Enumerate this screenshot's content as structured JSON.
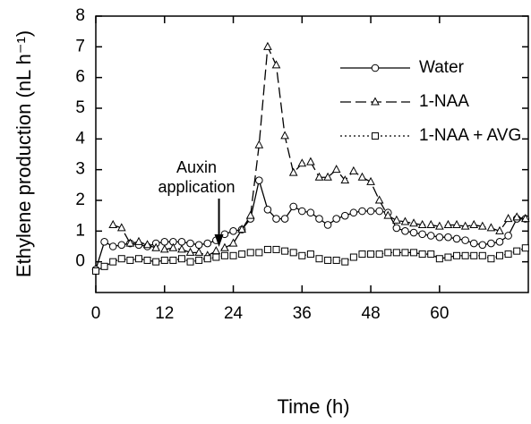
{
  "chart_data": {
    "type": "line",
    "xlabel": "Time (h)",
    "ylabel": "Ethylene production (nL h⁻¹)",
    "annotation": "Auxin application",
    "annotation_x": 21.5,
    "x": [
      0,
      1.5,
      3,
      4.5,
      6,
      7.5,
      9,
      10.5,
      12,
      13.5,
      15,
      16.5,
      18,
      19.5,
      21,
      22.5,
      24,
      25.5,
      27,
      28.5,
      30,
      31.5,
      33,
      34.5,
      36,
      37.5,
      39,
      40.5,
      42,
      43.5,
      45,
      46.5,
      48,
      49.5,
      51,
      52.5,
      54,
      55.5,
      57,
      58.5,
      60,
      61.5,
      63,
      64.5,
      66,
      67.5,
      69,
      70.5,
      72,
      73.5,
      75
    ],
    "series": [
      {
        "name": "Water",
        "color": "#000000",
        "marker": "circle",
        "dash": "solid",
        "values": [
          -0.25,
          0.65,
          0.5,
          0.55,
          0.6,
          0.55,
          0.5,
          0.6,
          0.65,
          0.65,
          0.65,
          0.6,
          0.55,
          0.6,
          0.7,
          0.9,
          1.0,
          1.05,
          1.4,
          2.65,
          1.7,
          1.4,
          1.4,
          1.8,
          1.65,
          1.6,
          1.4,
          1.2,
          1.4,
          1.5,
          1.6,
          1.65,
          1.65,
          1.65,
          1.6,
          1.1,
          1.0,
          0.95,
          0.9,
          0.85,
          0.8,
          0.8,
          0.75,
          0.7,
          0.6,
          0.55,
          0.6,
          0.65,
          0.85,
          1.4,
          1.4
        ]
      },
      {
        "name": "1-NAA",
        "color": "#000000",
        "marker": "triangle",
        "dash": "dashed",
        "values": [
          null,
          null,
          1.2,
          1.1,
          0.6,
          0.65,
          0.55,
          0.45,
          0.4,
          0.45,
          0.4,
          0.3,
          0.3,
          0.2,
          0.35,
          0.45,
          0.6,
          1.05,
          1.5,
          3.8,
          7.0,
          6.4,
          4.1,
          2.9,
          3.2,
          3.25,
          2.75,
          2.75,
          3.0,
          2.65,
          2.95,
          2.75,
          2.6,
          2.0,
          1.5,
          1.35,
          1.3,
          1.25,
          1.2,
          1.2,
          1.15,
          1.2,
          1.2,
          1.15,
          1.2,
          1.15,
          1.1,
          1.0,
          1.4,
          1.45,
          1.4
        ]
      },
      {
        "name": "1-NAA + AVG",
        "color": "#000000",
        "marker": "square",
        "dash": "dotted",
        "values": [
          -0.3,
          -0.15,
          0.0,
          0.1,
          0.05,
          0.1,
          0.05,
          0.0,
          0.05,
          0.05,
          0.1,
          0.0,
          0.05,
          0.1,
          0.15,
          0.2,
          0.2,
          0.25,
          0.3,
          0.3,
          0.4,
          0.4,
          0.35,
          0.3,
          0.2,
          0.25,
          0.1,
          0.05,
          0.05,
          0.0,
          0.15,
          0.25,
          0.25,
          0.25,
          0.3,
          0.3,
          0.3,
          0.3,
          0.25,
          0.25,
          0.1,
          0.15,
          0.2,
          0.2,
          0.2,
          0.2,
          0.1,
          0.2,
          0.25,
          0.35,
          0.45
        ]
      }
    ],
    "xlim": [
      0,
      75.5
    ],
    "xticks": [
      0,
      12,
      24,
      36,
      48,
      60
    ],
    "ylim": [
      -1,
      8
    ],
    "yticks": [
      0,
      1,
      2,
      3,
      4,
      5,
      6,
      7,
      8
    ],
    "legend": "upper right",
    "grid": false
  }
}
